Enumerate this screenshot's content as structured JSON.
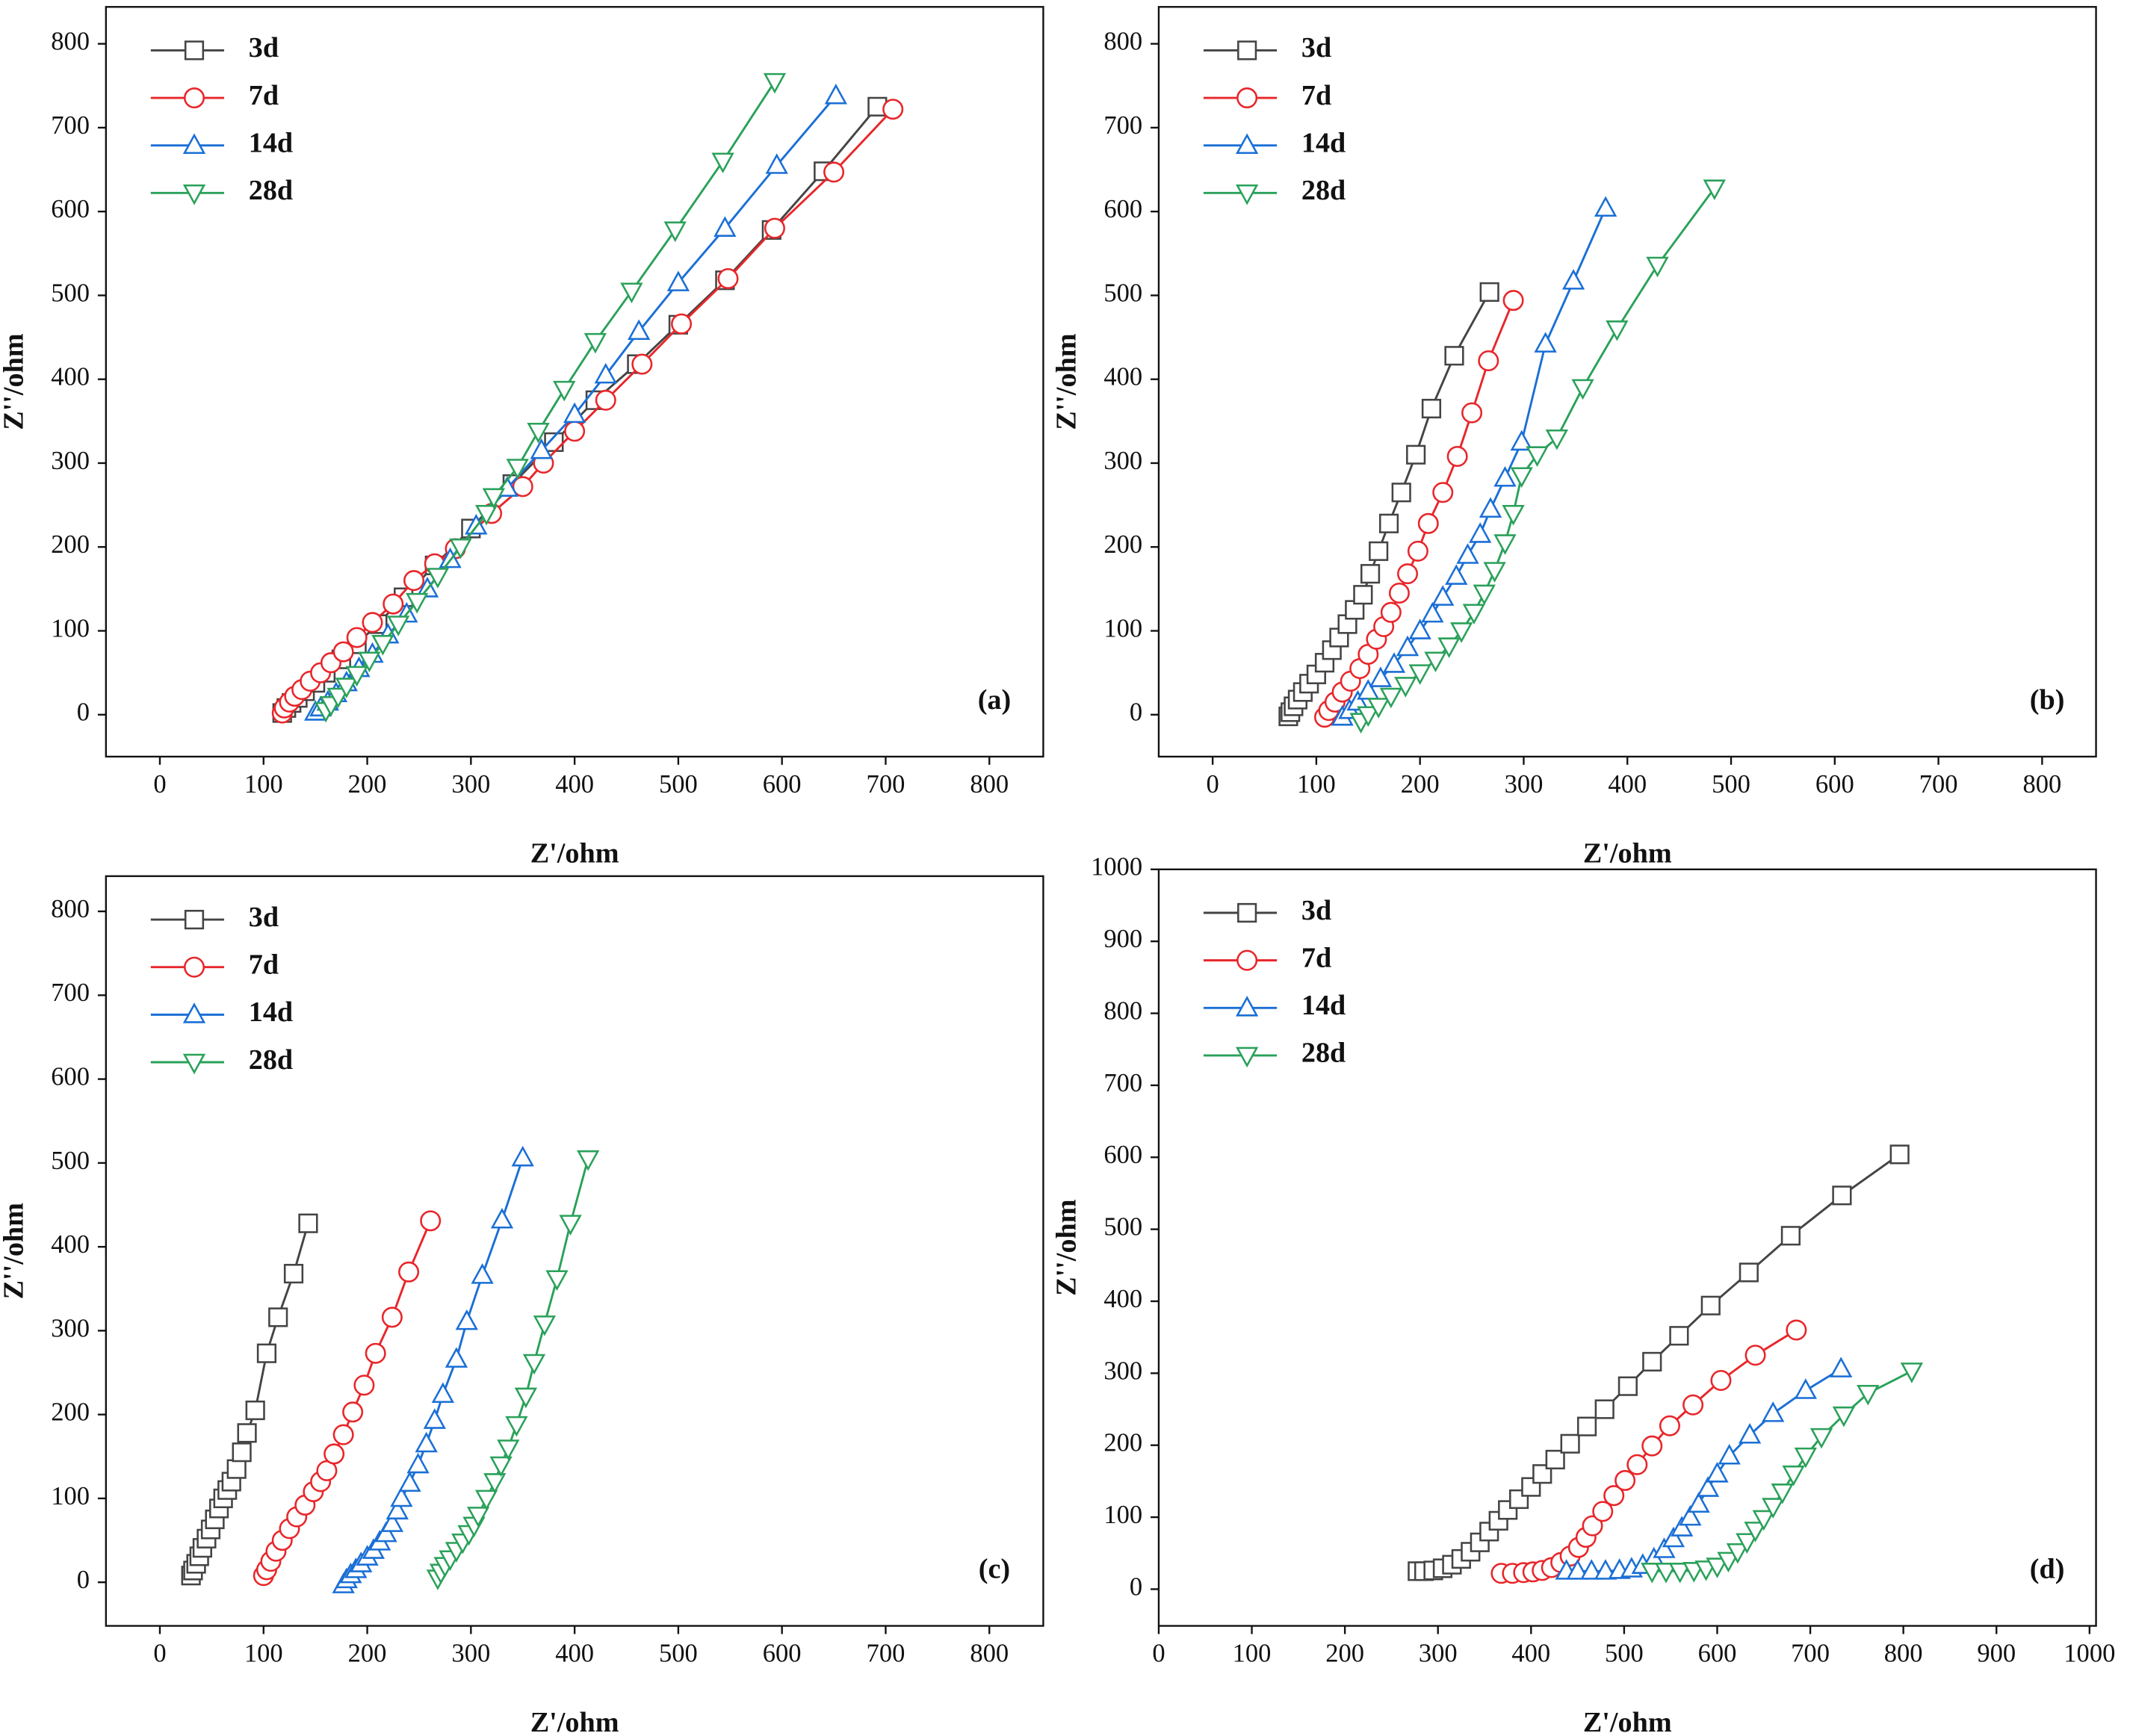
{
  "chart_data": [
    {
      "type": "line",
      "panel_label": "(a)",
      "x_label": "Z'/ohm",
      "y_label": "Z''/ohm",
      "xlim": [
        -52,
        852
      ],
      "ylim": [
        -50,
        844
      ],
      "xticks": [
        0,
        100,
        200,
        300,
        400,
        500,
        600,
        700,
        800
      ],
      "yticks": [
        0,
        100,
        200,
        300,
        400,
        500,
        600,
        700,
        800
      ],
      "series": [
        {
          "name": "3d",
          "color": "#444444",
          "marker": "square",
          "x": [
            118,
            122,
            127,
            133,
            140,
            150,
            160,
            175,
            190,
            210,
            235,
            265,
            300,
            340,
            380,
            420,
            460,
            500,
            545,
            590,
            640,
            692
          ],
          "values": [
            2,
            8,
            14,
            20,
            28,
            38,
            50,
            66,
            84,
            108,
            140,
            178,
            222,
            275,
            325,
            375,
            418,
            465,
            518,
            578,
            648,
            725
          ]
        },
        {
          "name": "7d",
          "color": "#e8262a",
          "marker": "circle",
          "x": [
            118,
            120,
            125,
            130,
            137,
            145,
            155,
            165,
            177,
            190,
            205,
            225,
            245,
            265,
            285,
            320,
            350,
            370,
            400,
            430,
            465,
            503,
            548,
            593,
            650,
            707
          ],
          "values": [
            2,
            8,
            15,
            22,
            30,
            40,
            50,
            62,
            75,
            92,
            110,
            132,
            160,
            180,
            198,
            240,
            272,
            300,
            338,
            375,
            418,
            466,
            520,
            580,
            647,
            722
          ]
        },
        {
          "name": "14d",
          "color": "#1a6fd6",
          "marker": "triangle-up",
          "x": [
            150,
            155,
            162,
            170,
            180,
            192,
            205,
            220,
            238,
            258,
            280,
            305,
            335,
            368,
            400,
            430,
            462,
            500,
            545,
            595,
            652
          ],
          "values": [
            3,
            8,
            15,
            25,
            38,
            55,
            72,
            95,
            120,
            150,
            185,
            225,
            270,
            315,
            358,
            405,
            457,
            515,
            580,
            655,
            738
          ]
        },
        {
          "name": "28d",
          "color": "#2aa15a",
          "marker": "triangle-down",
          "x": [
            160,
            165,
            172,
            180,
            190,
            202,
            215,
            230,
            248,
            268,
            290,
            315,
            322,
            345,
            365,
            390,
            420,
            455,
            497,
            543,
            593
          ],
          "values": [
            5,
            12,
            22,
            34,
            48,
            65,
            85,
            108,
            135,
            165,
            200,
            240,
            260,
            295,
            338,
            388,
            445,
            505,
            578,
            660,
            755
          ]
        }
      ]
    },
    {
      "type": "line",
      "panel_label": "(b)",
      "x_label": "Z'/ohm",
      "y_label": "Z''/ohm",
      "xlim": [
        -52,
        852
      ],
      "ylim": [
        -50,
        844
      ],
      "xticks": [
        0,
        100,
        200,
        300,
        400,
        500,
        600,
        700,
        800
      ],
      "yticks": [
        0,
        100,
        200,
        300,
        400,
        500,
        600,
        700,
        800
      ],
      "series": [
        {
          "name": "3d",
          "color": "#444444",
          "marker": "square",
          "x": [
            73,
            75,
            78,
            82,
            87,
            93,
            100,
            108,
            115,
            122,
            130,
            137,
            145,
            152,
            160,
            170,
            182,
            196,
            211,
            233,
            267
          ],
          "values": [
            -2,
            3,
            10,
            18,
            27,
            37,
            48,
            62,
            77,
            92,
            108,
            125,
            143,
            168,
            195,
            228,
            265,
            310,
            365,
            428,
            504
          ]
        },
        {
          "name": "7d",
          "color": "#e8262a",
          "marker": "circle",
          "x": [
            108,
            112,
            118,
            125,
            133,
            142,
            150,
            158,
            165,
            172,
            180,
            188,
            198,
            208,
            222,
            236,
            250,
            266,
            290
          ],
          "values": [
            -3,
            5,
            15,
            27,
            40,
            55,
            72,
            90,
            105,
            122,
            145,
            168,
            195,
            228,
            265,
            308,
            360,
            422,
            494
          ]
        },
        {
          "name": "14d",
          "color": "#1a6fd6",
          "marker": "triangle-up",
          "x": [
            125,
            132,
            140,
            150,
            162,
            175,
            188,
            200,
            212,
            222,
            235,
            246,
            258,
            268,
            282,
            298,
            321,
            348,
            379
          ],
          "values": [
            -3,
            5,
            15,
            28,
            43,
            60,
            80,
            100,
            120,
            140,
            165,
            190,
            215,
            245,
            282,
            325,
            442,
            517,
            604
          ]
        },
        {
          "name": "28d",
          "color": "#2aa15a",
          "marker": "triangle-down",
          "x": [
            143,
            150,
            160,
            172,
            186,
            200,
            215,
            228,
            240,
            252,
            262,
            272,
            282,
            290,
            298,
            313,
            332,
            357,
            390,
            429,
            484
          ],
          "values": [
            -8,
            0,
            10,
            22,
            35,
            50,
            65,
            82,
            100,
            122,
            145,
            172,
            205,
            240,
            285,
            310,
            330,
            390,
            460,
            536,
            628
          ]
        }
      ]
    },
    {
      "type": "line",
      "panel_label": "(c)",
      "x_label": "Z'/ohm",
      "y_label": "Z''/ohm",
      "xlim": [
        -52,
        852
      ],
      "ylim": [
        -52,
        842
      ],
      "xticks": [
        0,
        100,
        200,
        300,
        400,
        500,
        600,
        700,
        800
      ],
      "yticks": [
        0,
        100,
        200,
        300,
        400,
        500,
        600,
        700,
        800
      ],
      "series": [
        {
          "name": "3d",
          "color": "#444444",
          "marker": "square",
          "x": [
            30,
            32,
            35,
            38,
            41,
            45,
            49,
            53,
            57,
            61,
            65,
            69,
            74,
            79,
            84,
            92,
            103,
            114,
            129,
            143
          ],
          "values": [
            8,
            14,
            22,
            31,
            41,
            52,
            63,
            75,
            88,
            100,
            110,
            120,
            135,
            155,
            178,
            205,
            273,
            316,
            368,
            428
          ]
        },
        {
          "name": "7d",
          "color": "#e8262a",
          "marker": "circle",
          "x": [
            100,
            103,
            107,
            112,
            118,
            125,
            132,
            140,
            148,
            155,
            161,
            168,
            177,
            186,
            197,
            208,
            224,
            240,
            261
          ],
          "values": [
            8,
            15,
            25,
            37,
            50,
            64,
            78,
            92,
            108,
            120,
            133,
            153,
            176,
            203,
            235,
            273,
            316,
            370,
            431
          ]
        },
        {
          "name": "14d",
          "color": "#1a6fd6",
          "marker": "triangle-up",
          "x": [
            177,
            180,
            184,
            189,
            194,
            200,
            206,
            212,
            218,
            224,
            229,
            233,
            241,
            249,
            257,
            265,
            273,
            286,
            296,
            311,
            330,
            350
          ],
          "values": [
            -3,
            3,
            9,
            15,
            22,
            30,
            38,
            48,
            58,
            70,
            85,
            100,
            118,
            140,
            165,
            193,
            224,
            266,
            311,
            366,
            432,
            506
          ]
        },
        {
          "name": "28d",
          "color": "#2aa15a",
          "marker": "triangle-down",
          "x": [
            268,
            271,
            275,
            280,
            286,
            292,
            298,
            303,
            307,
            315,
            323,
            329,
            336,
            344,
            353,
            361,
            371,
            383,
            396,
            413
          ],
          "values": [
            5,
            12,
            20,
            28,
            38,
            48,
            58,
            68,
            80,
            100,
            120,
            140,
            160,
            188,
            222,
            262,
            308,
            362,
            428,
            505
          ]
        }
      ]
    },
    {
      "type": "line",
      "panel_label": "(d)",
      "x_label": "Z'/ohm",
      "y_label": "Z''/ohm",
      "xlim": [
        0,
        1007
      ],
      "ylim": [
        -51,
        1000
      ],
      "xticks": [
        0,
        100,
        200,
        300,
        400,
        500,
        600,
        700,
        800,
        900,
        1000
      ],
      "yticks": [
        0,
        100,
        200,
        300,
        400,
        500,
        600,
        700,
        800,
        900,
        1000
      ],
      "series": [
        {
          "name": "3d",
          "color": "#444444",
          "marker": "square",
          "x": [
            278,
            285,
            295,
            305,
            315,
            325,
            335,
            345,
            355,
            365,
            375,
            387,
            400,
            412,
            426,
            442,
            460,
            479,
            504,
            530,
            559,
            593,
            634,
            679,
            734,
            796
          ],
          "values": [
            25,
            25,
            26,
            29,
            34,
            42,
            52,
            65,
            80,
            95,
            110,
            125,
            142,
            160,
            180,
            202,
            226,
            250,
            282,
            316,
            352,
            394,
            440,
            491,
            547,
            604
          ]
        },
        {
          "name": "7d",
          "color": "#e8262a",
          "marker": "circle",
          "x": [
            368,
            380,
            392,
            402,
            412,
            422,
            432,
            442,
            451,
            459,
            466,
            477,
            489,
            501,
            514,
            530,
            549,
            574,
            604,
            641,
            685
          ],
          "values": [
            22,
            22,
            23,
            24,
            26,
            30,
            37,
            46,
            58,
            72,
            88,
            108,
            130,
            151,
            173,
            199,
            227,
            256,
            290,
            325,
            360
          ]
        },
        {
          "name": "14d",
          "color": "#1a6fd6",
          "marker": "triangle-up",
          "x": [
            438,
            450,
            465,
            480,
            495,
            508,
            520,
            532,
            543,
            553,
            562,
            571,
            580,
            590,
            600,
            613,
            635,
            660,
            695,
            733
          ],
          "values": [
            25,
            25,
            25,
            25,
            26,
            28,
            33,
            42,
            55,
            70,
            85,
            100,
            118,
            140,
            160,
            185,
            214,
            244,
            276,
            306
          ]
        },
        {
          "name": "28d",
          "color": "#2aa15a",
          "marker": "triangle-down",
          "x": [
            530,
            545,
            560,
            575,
            588,
            600,
            612,
            622,
            632,
            641,
            650,
            660,
            670,
            682,
            695,
            712,
            736,
            762,
            809
          ],
          "values": [
            25,
            25,
            25,
            26,
            28,
            32,
            40,
            52,
            66,
            82,
            98,
            115,
            135,
            160,
            185,
            212,
            242,
            272,
            303
          ]
        }
      ]
    }
  ]
}
